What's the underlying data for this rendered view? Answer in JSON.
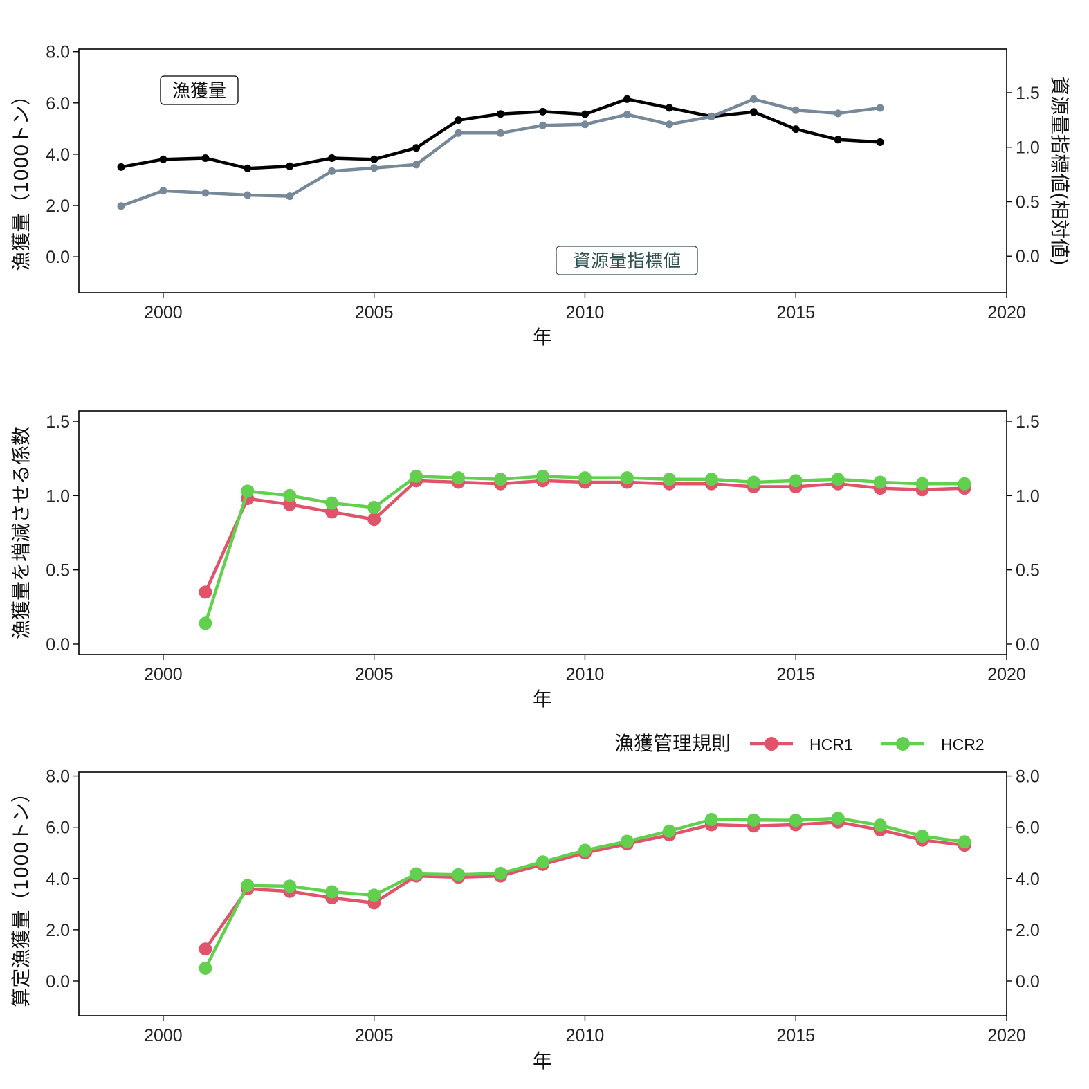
{
  "legend": {
    "title": "漁獲管理規則"
  },
  "chart_data": [
    {
      "type": "line",
      "xlabel": "年",
      "ylabel": "漁獲量（1000トン）",
      "y2label": "資源量指標値(相対値)",
      "xlim": [
        1998,
        2020
      ],
      "ylim": [
        -1.4,
        8.1
      ],
      "y2lim": [
        -0.335,
        1.9
      ],
      "xticks": [
        2000,
        2005,
        2010,
        2015,
        2020
      ],
      "yticks": [
        0.0,
        2.0,
        4.0,
        6.0,
        8.0
      ],
      "y2ticks": [
        0.0,
        0.5,
        1.0,
        1.5
      ],
      "ytick_labels": [
        "0.0",
        "2.0",
        "4.0",
        "6.0",
        "8.0"
      ],
      "y2tick_labels": [
        "0.0",
        "0.5",
        "1.0",
        "1.5"
      ],
      "annotations": {
        "catch_label": "漁獲量",
        "index_label": "資源量指標値"
      },
      "x": [
        1999,
        2000,
        2001,
        2002,
        2003,
        2004,
        2005,
        2006,
        2007,
        2008,
        2009,
        2010,
        2011,
        2012,
        2013,
        2014,
        2015,
        2016,
        2017
      ],
      "series": [
        {
          "axis": "left",
          "color": "#000000",
          "values": [
            3.5,
            3.8,
            3.85,
            3.45,
            3.53,
            3.85,
            3.8,
            4.25,
            5.33,
            5.57,
            5.66,
            5.56,
            6.15,
            5.81,
            5.47,
            5.65,
            4.98,
            4.57,
            4.47
          ]
        },
        {
          "axis": "right",
          "color": "#778899",
          "values": [
            0.46,
            0.6,
            0.58,
            0.56,
            0.55,
            0.78,
            0.81,
            0.84,
            1.13,
            1.13,
            1.2,
            1.21,
            1.3,
            1.21,
            1.28,
            1.44,
            1.34,
            1.31,
            1.36
          ]
        }
      ]
    },
    {
      "type": "line",
      "xlabel": "年",
      "ylabel": "漁獲量を増減させる係数",
      "xlim": [
        1998,
        2020
      ],
      "ylim": [
        -0.07,
        1.57
      ],
      "xticks": [
        2000,
        2005,
        2010,
        2015,
        2020
      ],
      "yticks": [
        0.0,
        0.5,
        1.0,
        1.5
      ],
      "ytick_labels": [
        "0.0",
        "0.5",
        "1.0",
        "1.5"
      ],
      "x": [
        2001,
        2002,
        2003,
        2004,
        2005,
        2006,
        2007,
        2008,
        2009,
        2010,
        2011,
        2012,
        2013,
        2014,
        2015,
        2016,
        2017,
        2018,
        2019
      ],
      "series": [
        {
          "name": "HCR1",
          "color": "#DF536B",
          "values": [
            0.35,
            0.98,
            0.94,
            0.89,
            0.84,
            1.1,
            1.09,
            1.08,
            1.1,
            1.09,
            1.09,
            1.08,
            1.08,
            1.06,
            1.06,
            1.08,
            1.05,
            1.04,
            1.05
          ]
        },
        {
          "name": "HCR2",
          "color": "#61D04F",
          "values": [
            0.14,
            1.03,
            1.0,
            0.95,
            0.92,
            1.13,
            1.12,
            1.11,
            1.13,
            1.12,
            1.12,
            1.11,
            1.11,
            1.09,
            1.1,
            1.11,
            1.09,
            1.08,
            1.08
          ]
        }
      ]
    },
    {
      "type": "line",
      "xlabel": "年",
      "ylabel": "算定漁獲量（1000トン）",
      "xlim": [
        1998,
        2020
      ],
      "ylim": [
        -1.35,
        8.15
      ],
      "xticks": [
        2000,
        2005,
        2010,
        2015,
        2020
      ],
      "yticks": [
        0.0,
        2.0,
        4.0,
        6.0,
        8.0
      ],
      "ytick_labels": [
        "0.0",
        "2.0",
        "4.0",
        "6.0",
        "8.0"
      ],
      "x": [
        2001,
        2002,
        2003,
        2004,
        2005,
        2006,
        2007,
        2008,
        2009,
        2010,
        2011,
        2012,
        2013,
        2014,
        2015,
        2016,
        2017,
        2018,
        2019
      ],
      "series": [
        {
          "name": "HCR1",
          "color": "#DF536B",
          "values": [
            1.25,
            3.6,
            3.5,
            3.25,
            3.05,
            4.1,
            4.05,
            4.1,
            4.55,
            5.0,
            5.35,
            5.7,
            6.1,
            6.05,
            6.1,
            6.2,
            5.9,
            5.5,
            5.3
          ]
        },
        {
          "name": "HCR2",
          "color": "#61D04F",
          "values": [
            0.5,
            3.73,
            3.7,
            3.48,
            3.35,
            4.18,
            4.15,
            4.2,
            4.65,
            5.1,
            5.45,
            5.85,
            6.3,
            6.28,
            6.27,
            6.35,
            6.08,
            5.65,
            5.43
          ]
        }
      ]
    }
  ]
}
